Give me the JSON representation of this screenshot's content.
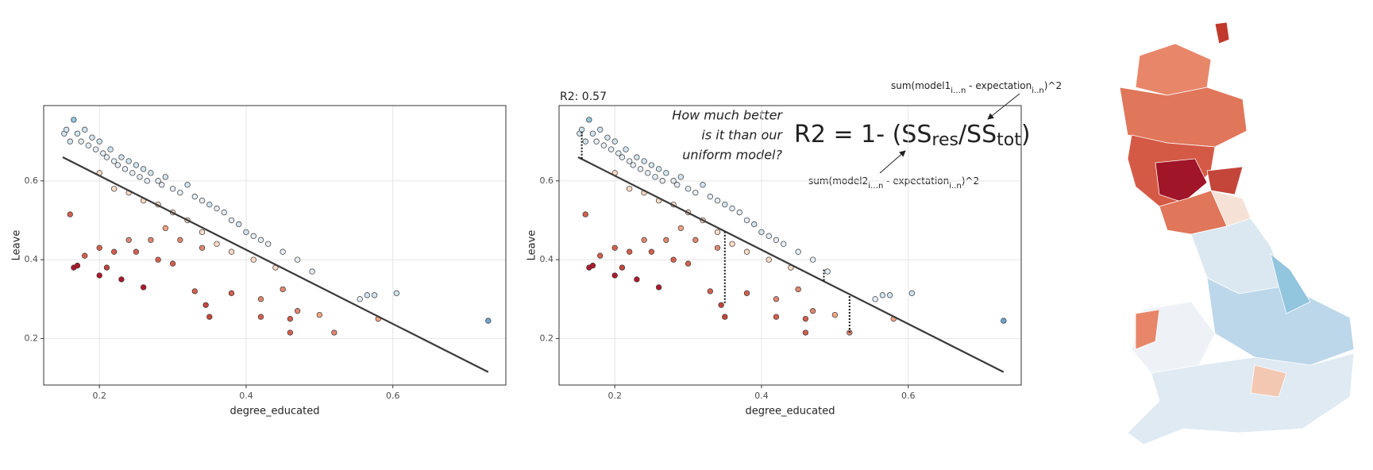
{
  "chart_data": [
    {
      "type": "scatter",
      "xlabel": "degree_educated",
      "ylabel": "Leave",
      "xlim": [
        0.124,
        0.754
      ],
      "ylim": [
        0.082,
        0.791
      ],
      "xticks": [
        0.2,
        0.4,
        0.6
      ],
      "yticks": [
        0.2,
        0.4,
        0.6
      ],
      "grid": true,
      "x": [
        0.152,
        0.155,
        0.16,
        0.165,
        0.17,
        0.175,
        0.18,
        0.185,
        0.19,
        0.195,
        0.2,
        0.205,
        0.21,
        0.215,
        0.22,
        0.225,
        0.23,
        0.235,
        0.24,
        0.245,
        0.25,
        0.255,
        0.26,
        0.265,
        0.27,
        0.28,
        0.285,
        0.29,
        0.3,
        0.31,
        0.32,
        0.33,
        0.34,
        0.35,
        0.36,
        0.37,
        0.38,
        0.39,
        0.4,
        0.41,
        0.42,
        0.43,
        0.45,
        0.47,
        0.49,
        0.555,
        0.565,
        0.575,
        0.605,
        0.73,
        0.2,
        0.22,
        0.24,
        0.26,
        0.28,
        0.3,
        0.32,
        0.34,
        0.36,
        0.38,
        0.41,
        0.44,
        0.16,
        0.165,
        0.17,
        0.18,
        0.2,
        0.2,
        0.21,
        0.22,
        0.23,
        0.24,
        0.25,
        0.26,
        0.27,
        0.28,
        0.29,
        0.3,
        0.31,
        0.33,
        0.34,
        0.345,
        0.35,
        0.38,
        0.42,
        0.42,
        0.45,
        0.46,
        0.46,
        0.47,
        0.5,
        0.52,
        0.58
      ],
      "y": [
        0.72,
        0.73,
        0.7,
        0.755,
        0.72,
        0.7,
        0.73,
        0.69,
        0.71,
        0.68,
        0.7,
        0.67,
        0.66,
        0.68,
        0.65,
        0.64,
        0.66,
        0.63,
        0.65,
        0.62,
        0.64,
        0.61,
        0.63,
        0.6,
        0.62,
        0.6,
        0.59,
        0.61,
        0.58,
        0.57,
        0.59,
        0.56,
        0.55,
        0.54,
        0.53,
        0.52,
        0.5,
        0.49,
        0.47,
        0.46,
        0.45,
        0.44,
        0.42,
        0.4,
        0.37,
        0.3,
        0.31,
        0.31,
        0.315,
        0.245,
        0.62,
        0.58,
        0.57,
        0.55,
        0.54,
        0.52,
        0.5,
        0.47,
        0.44,
        0.42,
        0.4,
        0.38,
        0.515,
        0.38,
        0.385,
        0.41,
        0.36,
        0.43,
        0.38,
        0.42,
        0.35,
        0.45,
        0.42,
        0.33,
        0.45,
        0.4,
        0.48,
        0.39,
        0.45,
        0.32,
        0.43,
        0.285,
        0.255,
        0.315,
        0.3,
        0.255,
        0.325,
        0.25,
        0.215,
        0.27,
        0.26,
        0.215,
        0.25
      ],
      "colors": [
        "#d1e5f0",
        "#d1e5f0",
        "#d1e5f0",
        "#92c5de",
        "#d1e5f0",
        "#e6eef5",
        "#d1e5f0",
        "#e6eef5",
        "#d1e5f0",
        "#e6eef5",
        "#d1e5f0",
        "#e6eef5",
        "#e6eef5",
        "#d1e5f0",
        "#e6eef5",
        "#e6eef5",
        "#d1e5f0",
        "#e6eef5",
        "#d1e5f0",
        "#e6eef5",
        "#d1e5f0",
        "#e6eef5",
        "#d1e5f0",
        "#e6eef5",
        "#d1e5f0",
        "#e6eef5",
        "#e6eef5",
        "#d1e5f0",
        "#e6eef5",
        "#e6eef5",
        "#d1e5f0",
        "#e6eef5",
        "#e6eef5",
        "#d1e5f0",
        "#e6eef5",
        "#e6eef5",
        "#e6eef5",
        "#d1e5f0",
        "#d1e5f0",
        "#e6eef5",
        "#e6eef5",
        "#e6eef5",
        "#e6eef5",
        "#e6eef5",
        "#e6eef5",
        "#e6eef5",
        "#d1e5f0",
        "#d1e5f0",
        "#d1e5f0",
        "#6ea6cd",
        "#fddbc7",
        "#fddbc7",
        "#fddbc7",
        "#fddbc7",
        "#fddbc7",
        "#fddbc7",
        "#fddbc7",
        "#fddbc7",
        "#fddbc7",
        "#fddbc7",
        "#fddbc7",
        "#fddbc7",
        "#d6604d",
        "#b2182b",
        "#b2182b",
        "#d6604d",
        "#b2182b",
        "#d6604d",
        "#c4453a",
        "#d6604d",
        "#b2182b",
        "#e08870",
        "#d6604d",
        "#b2182b",
        "#e08870",
        "#d6604d",
        "#f4a582",
        "#d6604d",
        "#e08870",
        "#d6604d",
        "#e08870",
        "#c4453a",
        "#c4453a",
        "#d6604d",
        "#e08870",
        "#d6604d",
        "#e08870",
        "#d6604d",
        "#d6604d",
        "#e08870",
        "#f4a582",
        "#e08870",
        "#f4a582"
      ],
      "fit": {
        "x": [
          0.15,
          0.73
        ],
        "y": [
          0.66,
          0.115
        ]
      }
    },
    {
      "type": "scatter",
      "xlabel": "degree_educated",
      "ylabel": "Leave",
      "subtitle": "R2: 0.57",
      "annotation": [
        "How much better",
        "is it than our",
        "uniform model?"
      ],
      "formula": [
        "R2 = 1- (SS",
        "res",
        "/SS",
        "tot",
        ")"
      ],
      "formula_top": [
        "sum(model1",
        "i…n",
        " - expectation",
        "i..n",
        ")^2"
      ],
      "formula_bottom": [
        "sum(model2",
        "i…n",
        " - expectation",
        "i..n",
        ")^2"
      ],
      "xlim": [
        0.124,
        0.754
      ],
      "ylim": [
        0.082,
        0.791
      ],
      "xticks": [
        0.2,
        0.4,
        0.6
      ],
      "yticks": [
        0.2,
        0.4,
        0.6
      ],
      "grid": true,
      "x": [
        0.152,
        0.155,
        0.16,
        0.165,
        0.17,
        0.175,
        0.18,
        0.185,
        0.19,
        0.195,
        0.2,
        0.205,
        0.21,
        0.215,
        0.22,
        0.225,
        0.23,
        0.235,
        0.24,
        0.245,
        0.25,
        0.255,
        0.26,
        0.265,
        0.27,
        0.28,
        0.285,
        0.29,
        0.3,
        0.31,
        0.32,
        0.33,
        0.34,
        0.35,
        0.36,
        0.37,
        0.38,
        0.39,
        0.4,
        0.41,
        0.42,
        0.43,
        0.45,
        0.47,
        0.49,
        0.555,
        0.565,
        0.575,
        0.605,
        0.73,
        0.2,
        0.22,
        0.24,
        0.26,
        0.28,
        0.3,
        0.32,
        0.34,
        0.36,
        0.38,
        0.41,
        0.44,
        0.16,
        0.165,
        0.17,
        0.18,
        0.2,
        0.2,
        0.21,
        0.22,
        0.23,
        0.24,
        0.25,
        0.26,
        0.27,
        0.28,
        0.29,
        0.3,
        0.31,
        0.33,
        0.34,
        0.345,
        0.35,
        0.38,
        0.42,
        0.42,
        0.45,
        0.46,
        0.46,
        0.47,
        0.5,
        0.52,
        0.58
      ],
      "y": [
        0.72,
        0.73,
        0.7,
        0.755,
        0.72,
        0.7,
        0.73,
        0.69,
        0.71,
        0.68,
        0.7,
        0.67,
        0.66,
        0.68,
        0.65,
        0.64,
        0.66,
        0.63,
        0.65,
        0.62,
        0.64,
        0.61,
        0.63,
        0.6,
        0.62,
        0.6,
        0.59,
        0.61,
        0.58,
        0.57,
        0.59,
        0.56,
        0.55,
        0.54,
        0.53,
        0.52,
        0.5,
        0.49,
        0.47,
        0.46,
        0.45,
        0.44,
        0.42,
        0.4,
        0.37,
        0.3,
        0.31,
        0.31,
        0.315,
        0.245,
        0.62,
        0.58,
        0.57,
        0.55,
        0.54,
        0.52,
        0.5,
        0.47,
        0.44,
        0.42,
        0.4,
        0.38,
        0.515,
        0.38,
        0.385,
        0.41,
        0.36,
        0.43,
        0.38,
        0.42,
        0.35,
        0.45,
        0.42,
        0.33,
        0.45,
        0.4,
        0.48,
        0.39,
        0.45,
        0.32,
        0.43,
        0.285,
        0.255,
        0.315,
        0.3,
        0.255,
        0.325,
        0.25,
        0.215,
        0.27,
        0.26,
        0.215,
        0.25
      ],
      "colors": [
        "#d1e5f0",
        "#d1e5f0",
        "#d1e5f0",
        "#92c5de",
        "#d1e5f0",
        "#e6eef5",
        "#d1e5f0",
        "#e6eef5",
        "#d1e5f0",
        "#e6eef5",
        "#d1e5f0",
        "#e6eef5",
        "#e6eef5",
        "#d1e5f0",
        "#e6eef5",
        "#e6eef5",
        "#d1e5f0",
        "#e6eef5",
        "#d1e5f0",
        "#e6eef5",
        "#d1e5f0",
        "#e6eef5",
        "#d1e5f0",
        "#e6eef5",
        "#d1e5f0",
        "#e6eef5",
        "#e6eef5",
        "#d1e5f0",
        "#e6eef5",
        "#e6eef5",
        "#d1e5f0",
        "#e6eef5",
        "#e6eef5",
        "#d1e5f0",
        "#e6eef5",
        "#e6eef5",
        "#e6eef5",
        "#d1e5f0",
        "#d1e5f0",
        "#e6eef5",
        "#e6eef5",
        "#e6eef5",
        "#e6eef5",
        "#e6eef5",
        "#e6eef5",
        "#e6eef5",
        "#d1e5f0",
        "#d1e5f0",
        "#d1e5f0",
        "#6ea6cd",
        "#fddbc7",
        "#fddbc7",
        "#fddbc7",
        "#fddbc7",
        "#fddbc7",
        "#fddbc7",
        "#fddbc7",
        "#fddbc7",
        "#fddbc7",
        "#fddbc7",
        "#fddbc7",
        "#fddbc7",
        "#d6604d",
        "#b2182b",
        "#b2182b",
        "#d6604d",
        "#b2182b",
        "#d6604d",
        "#c4453a",
        "#d6604d",
        "#b2182b",
        "#e08870",
        "#d6604d",
        "#b2182b",
        "#e08870",
        "#d6604d",
        "#f4a582",
        "#d6604d",
        "#e08870",
        "#d6604d",
        "#e08870",
        "#c4453a",
        "#c4453a",
        "#d6604d",
        "#e08870",
        "#d6604d",
        "#e08870",
        "#d6604d",
        "#d6604d",
        "#e08870",
        "#f4a582",
        "#e08870",
        "#f4a582"
      ],
      "fit": {
        "x": [
          0.15,
          0.73
        ],
        "y": [
          0.66,
          0.115
        ]
      },
      "residuals": {
        "x": [
          0.155,
          0.35,
          0.485,
          0.52
        ],
        "y": [
          0.725,
          0.29,
          0.375,
          0.215
        ],
        "fitted": [
          0.655,
          0.47,
          0.345,
          0.31
        ]
      }
    }
  ]
}
